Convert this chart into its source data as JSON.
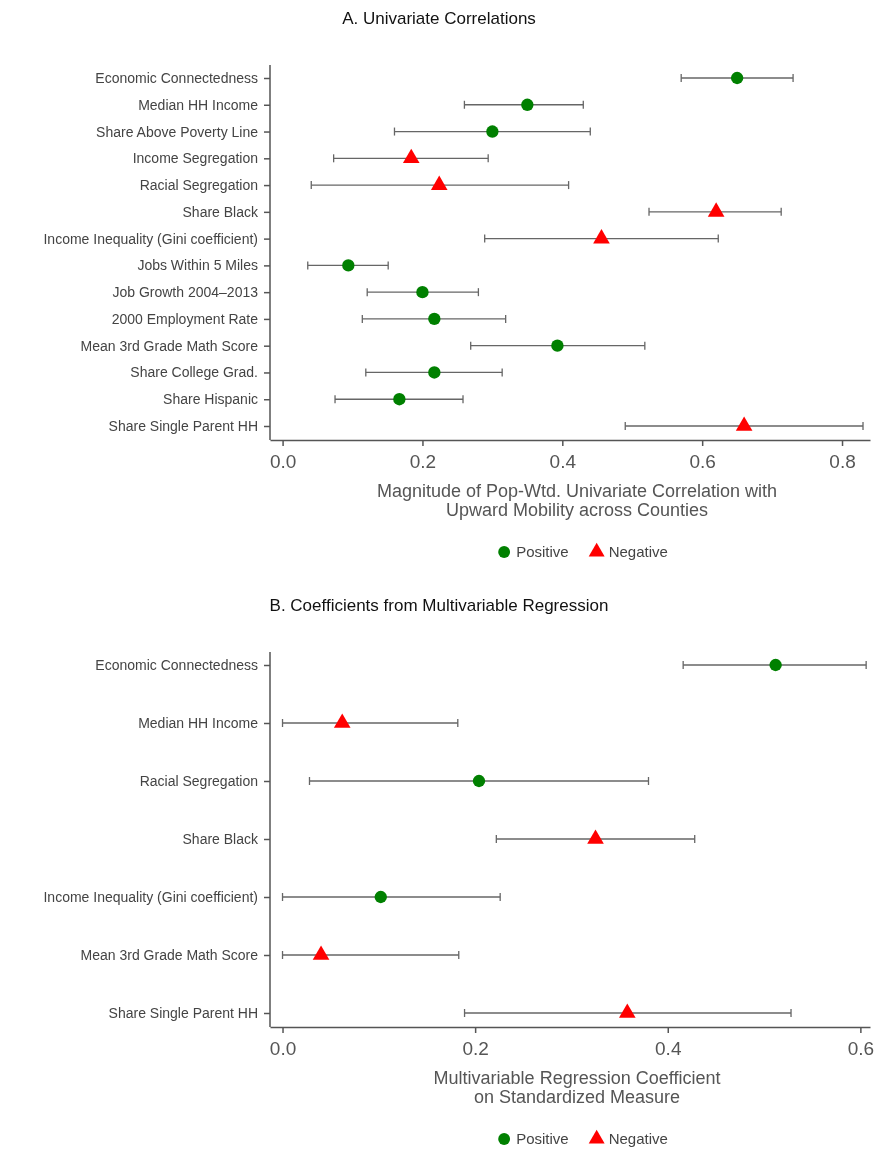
{
  "chart_data": [
    {
      "type": "scatter",
      "orientation": "horizontal",
      "title": "A. Univariate Correlations",
      "xlabel": "Magnitude of Pop-Wtd. Univariate Correlation with\nUpward Mobility across Counties",
      "categories": [
        "Economic Connectedness",
        "Median HH Income",
        "Share Above Poverty Line",
        "Income Segregation",
        "Racial Segregation",
        "Share Black",
        "Income Inequality (Gini coefficient)",
        "Jobs Within 5 Miles",
        "Job Growth 2004–2013",
        "2000 Employment Rate",
        "Mean 3rd Grade Math Score",
        "Share College Grad.",
        "Share Hispanic",
        "Share Single Parent HH"
      ],
      "series": [
        {
          "name": "Positive",
          "color": "#008000",
          "marker": "circle",
          "values": [
            0.65,
            0.35,
            0.3,
            null,
            null,
            null,
            null,
            0.094,
            0.2,
            0.217,
            0.393,
            0.217,
            0.167,
            null
          ],
          "errors": [
            [
              0.57,
              0.73
            ],
            [
              0.26,
              0.43
            ],
            [
              0.16,
              0.44
            ],
            null,
            null,
            null,
            null,
            [
              0.036,
              0.151
            ],
            [
              0.121,
              0.28
            ],
            [
              0.114,
              0.319
            ],
            [
              0.269,
              0.518
            ],
            [
              0.119,
              0.314
            ],
            [
              0.075,
              0.258
            ],
            null
          ]
        },
        {
          "name": "Negative",
          "color": "#ff0000",
          "marker": "triangle",
          "values": [
            null,
            null,
            null,
            0.184,
            0.224,
            0.62,
            0.456,
            null,
            null,
            null,
            null,
            null,
            null,
            0.66
          ],
          "errors": [
            null,
            null,
            null,
            [
              0.073,
              0.294
            ],
            [
              0.041,
              0.409
            ],
            [
              0.524,
              0.713
            ],
            [
              0.289,
              0.623
            ],
            null,
            null,
            null,
            null,
            null,
            null,
            [
              0.49,
              0.83
            ]
          ]
        }
      ],
      "xlim": [
        -0.018,
        0.84
      ],
      "xticks": [
        {
          "value": 0,
          "label": "0.0"
        },
        0.2,
        0.4,
        0.6,
        0.8
      ],
      "legend": "bottom",
      "grid": false
    },
    {
      "type": "scatter",
      "orientation": "horizontal",
      "title": "B. Coefficients from Multivariable Regression",
      "xlabel": "Multivariable Regression Coefficient\non Standardized Measure",
      "categories": [
        "Economic Connectedness",
        "Median HH Income",
        "Racial Segregation",
        "Share Black",
        "Income Inequality (Gini coefficient)",
        "Mean 3rd Grade Math Score",
        "Share Single Parent HH"
      ],
      "series": [
        {
          "name": "Positive",
          "color": "#008000",
          "marker": "circle",
          "values": [
            0.512,
            null,
            0.204,
            null,
            0.102,
            null,
            null
          ],
          "errors": [
            [
              0.416,
              0.606
            ],
            null,
            [
              0.028,
              0.38
            ],
            null,
            [
              0,
              0.226
            ],
            null,
            null
          ]
        },
        {
          "name": "Negative",
          "color": "#ff0000",
          "marker": "triangle",
          "values": [
            null,
            0.062,
            null,
            0.325,
            null,
            0.04,
            0.358
          ],
          "errors": [
            null,
            [
              0,
              0.182
            ],
            null,
            [
              0.222,
              0.428
            ],
            null,
            [
              0,
              0.183
            ],
            [
              0.189,
              0.528
            ]
          ]
        }
      ],
      "xlim": [
        -0.013,
        0.61
      ],
      "xticks": [
        {
          "value": 0,
          "label": "0.0"
        },
        0.2,
        0.4,
        0.6
      ],
      "legend": "bottom",
      "grid": false
    }
  ]
}
